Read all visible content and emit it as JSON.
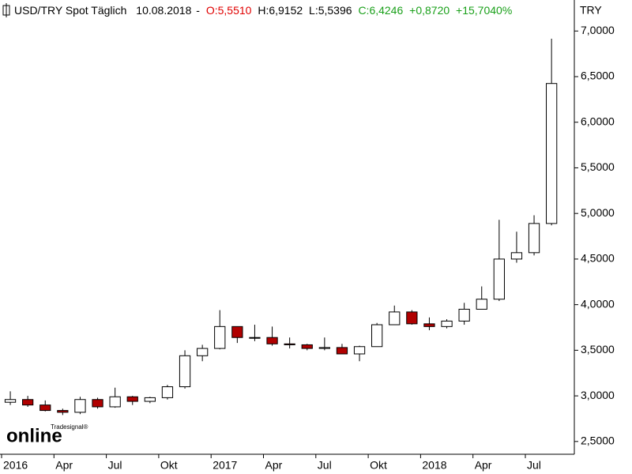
{
  "chart_data": {
    "type": "candlestick",
    "title": "USD/TRY Spot Täglich",
    "date": "10.08.2018",
    "quote": {
      "open": "O:5,5510",
      "high": "H:6,9152",
      "low": "L:5,5396",
      "close": "C:6,4246",
      "change": "+0,8720",
      "change_pct": "+15,7040%"
    },
    "unit": "TRY",
    "watermark_small": "Tradesignal®",
    "watermark": "online",
    "x": [
      "2016-01",
      "2016-02",
      "2016-03",
      "2016-04",
      "2016-05",
      "2016-06",
      "2016-07",
      "2016-08",
      "2016-09",
      "2016-10",
      "2016-11",
      "2016-12",
      "2017-01",
      "2017-02",
      "2017-03",
      "2017-04",
      "2017-05",
      "2017-06",
      "2017-07",
      "2017-08",
      "2017-09",
      "2017-10",
      "2017-11",
      "2017-12",
      "2018-01",
      "2018-02",
      "2018-03",
      "2018-04",
      "2018-05",
      "2018-06",
      "2018-07",
      "2018-08"
    ],
    "open": [
      2.93,
      2.96,
      2.9,
      2.84,
      2.82,
      2.96,
      2.88,
      2.99,
      2.94,
      2.98,
      3.1,
      3.44,
      3.52,
      3.76,
      3.64,
      3.64,
      3.57,
      3.56,
      3.52,
      3.53,
      3.46,
      3.54,
      3.78,
      3.92,
      3.79,
      3.76,
      3.82,
      3.95,
      4.06,
      4.5,
      4.57,
      4.89
    ],
    "high": [
      3.05,
      3.0,
      2.95,
      2.86,
      2.99,
      2.98,
      3.09,
      3.0,
      2.99,
      3.12,
      3.5,
      3.56,
      3.94,
      3.76,
      3.78,
      3.76,
      3.64,
      3.57,
      3.64,
      3.57,
      3.55,
      3.8,
      3.99,
      3.94,
      3.86,
      3.84,
      4.02,
      4.2,
      4.93,
      4.8,
      4.98,
      6.9152
    ],
    "low": [
      2.9,
      2.88,
      2.83,
      2.79,
      2.8,
      2.86,
      2.87,
      2.9,
      2.92,
      2.96,
      3.08,
      3.38,
      3.51,
      3.58,
      3.6,
      3.55,
      3.52,
      3.5,
      3.5,
      3.46,
      3.38,
      3.54,
      3.78,
      3.78,
      3.72,
      3.74,
      3.78,
      3.95,
      4.04,
      4.46,
      4.54,
      4.87
    ],
    "close": [
      2.96,
      2.9,
      2.84,
      2.82,
      2.96,
      2.88,
      2.99,
      2.94,
      2.98,
      3.1,
      3.44,
      3.52,
      3.76,
      3.64,
      3.64,
      3.57,
      3.56,
      3.52,
      3.53,
      3.46,
      3.54,
      3.78,
      3.92,
      3.79,
      3.76,
      3.82,
      3.95,
      4.06,
      4.5,
      4.57,
      4.89,
      6.4246
    ],
    "up_color": "#ffffff",
    "down_color": "#b00000",
    "edge_color": "#000000",
    "ylim": [
      2.36,
      7.34
    ],
    "yticks": [
      {
        "value": 2.5,
        "label": "2,5000"
      },
      {
        "value": 3.0,
        "label": "3,0000"
      },
      {
        "value": 3.5,
        "label": "3,5000"
      },
      {
        "value": 4.0,
        "label": "4,0000"
      },
      {
        "value": 4.5,
        "label": "4,5000"
      },
      {
        "value": 5.0,
        "label": "5,0000"
      },
      {
        "value": 5.5,
        "label": "5,5000"
      },
      {
        "value": 6.0,
        "label": "6,0000"
      },
      {
        "value": 6.5,
        "label": "6,5000"
      },
      {
        "value": 7.0,
        "label": "7,0000"
      }
    ],
    "xticks": [
      {
        "value": "2016-01",
        "label": "2016"
      },
      {
        "value": "2016-04",
        "label": "Apr"
      },
      {
        "value": "2016-07",
        "label": "Jul"
      },
      {
        "value": "2016-10",
        "label": "Okt"
      },
      {
        "value": "2017-01",
        "label": "2017"
      },
      {
        "value": "2017-04",
        "label": "Apr"
      },
      {
        "value": "2017-07",
        "label": "Jul"
      },
      {
        "value": "2017-10",
        "label": "Okt"
      },
      {
        "value": "2018-01",
        "label": "2018"
      },
      {
        "value": "2018-04",
        "label": "Apr"
      },
      {
        "value": "2018-07",
        "label": "Jul"
      }
    ]
  }
}
